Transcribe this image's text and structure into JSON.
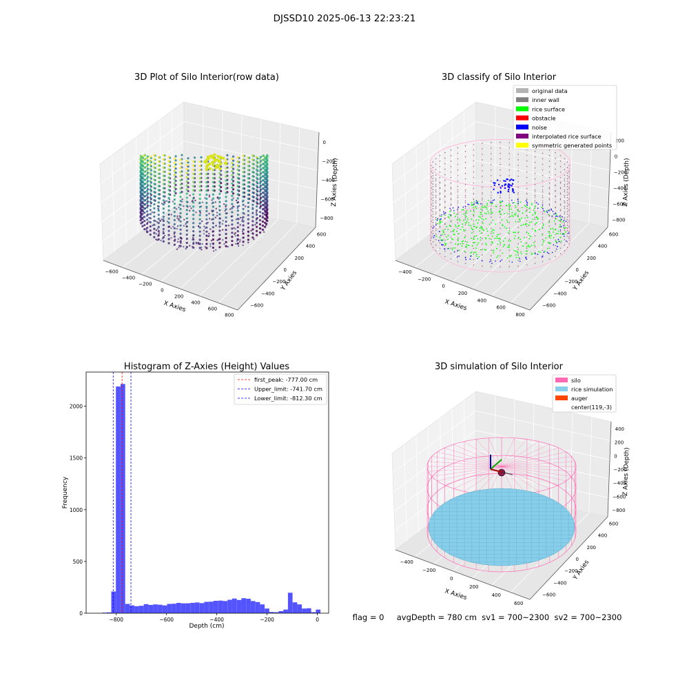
{
  "figure": {
    "suptitle": "DJSSD10 2025-06-13 22:23:21",
    "status_text": "flag = 0     avgDepth = 780 cm  sv1 = 700~2300  sv2 = 700~2300"
  },
  "chart_data": [
    {
      "type": "scatter",
      "title": "3D Plot of Silo Interior(row data)",
      "xlabel": "X Axies",
      "ylabel": "Y Axies",
      "zlabel": "Z Axies (Depth)",
      "x_ticks": [
        "−600",
        "−400",
        "−200",
        "0",
        "200",
        "400",
        "600",
        "800"
      ],
      "y_ticks": [
        "−600",
        "−400",
        "−200",
        "0",
        "200",
        "400",
        "600"
      ],
      "z_ticks": [
        "0",
        "−200",
        "−400",
        "−600",
        "−800"
      ],
      "xlim": [
        -600,
        800
      ],
      "ylim": [
        -600,
        600
      ],
      "zlim": [
        -950,
        0
      ],
      "colormap": "viridis"
    },
    {
      "type": "scatter",
      "title": "3D classify of Silo Interior",
      "xlabel": "X Axies",
      "ylabel": "Y Axies",
      "zlabel": "Z Axies (Depth)",
      "x_ticks": [
        "−400",
        "−200",
        "0",
        "200",
        "400",
        "600",
        "800"
      ],
      "y_ticks": [
        "−600",
        "−400",
        "−200",
        "0",
        "200",
        "400",
        "600"
      ],
      "z_ticks": [
        "200",
        "0",
        "−200",
        "−400",
        "−600",
        "−800"
      ],
      "legend_position": "top-right",
      "legend": [
        {
          "label": "original data",
          "color": "#b3b3b3"
        },
        {
          "label": "inner wall",
          "color": "#808080"
        },
        {
          "label": "rice surface",
          "color": "#00ff00"
        },
        {
          "label": "obstacle",
          "color": "#ff0000"
        },
        {
          "label": "noise",
          "color": "#0000ff"
        },
        {
          "label": "interpolated rice surface",
          "color": "#800080"
        },
        {
          "label": "symmetric generated points",
          "color": "#ffff00"
        }
      ]
    },
    {
      "type": "bar",
      "title": "Histogram of Z-Axies (Height) Values",
      "xlabel": "Depth (cm)",
      "ylabel": "Frequency",
      "xlim": [
        -920,
        45
      ],
      "ylim": [
        0,
        2330
      ],
      "x_ticks": [
        -800,
        -600,
        -400,
        -200,
        0
      ],
      "y_ticks": [
        0,
        500,
        1000,
        1500,
        2000
      ],
      "bar_color": "#4b4bff",
      "bin_width": 18.5,
      "bins": [
        {
          "x": -857,
          "v": 5
        },
        {
          "x": -838.5,
          "v": 8
        },
        {
          "x": -820,
          "v": 210
        },
        {
          "x": -801.5,
          "v": 2190
        },
        {
          "x": -783,
          "v": 2215
        },
        {
          "x": -764.5,
          "v": 90
        },
        {
          "x": -746,
          "v": 75
        },
        {
          "x": -727.5,
          "v": 68
        },
        {
          "x": -709,
          "v": 72
        },
        {
          "x": -690.5,
          "v": 88
        },
        {
          "x": -672,
          "v": 80
        },
        {
          "x": -653.5,
          "v": 85
        },
        {
          "x": -635,
          "v": 82
        },
        {
          "x": -616.5,
          "v": 75
        },
        {
          "x": -598,
          "v": 90
        },
        {
          "x": -579.5,
          "v": 92
        },
        {
          "x": -561,
          "v": 100
        },
        {
          "x": -542.5,
          "v": 95
        },
        {
          "x": -524,
          "v": 96
        },
        {
          "x": -505.5,
          "v": 100
        },
        {
          "x": -487,
          "v": 104
        },
        {
          "x": -468.5,
          "v": 98
        },
        {
          "x": -450,
          "v": 110
        },
        {
          "x": -431.5,
          "v": 112
        },
        {
          "x": -413,
          "v": 120
        },
        {
          "x": -394.5,
          "v": 122
        },
        {
          "x": -376,
          "v": 118
        },
        {
          "x": -357.5,
          "v": 130
        },
        {
          "x": -339,
          "v": 142
        },
        {
          "x": -320.5,
          "v": 128
        },
        {
          "x": -302,
          "v": 145
        },
        {
          "x": -283.5,
          "v": 140
        },
        {
          "x": -265,
          "v": 118
        },
        {
          "x": -246.5,
          "v": 108
        },
        {
          "x": -228,
          "v": 85
        },
        {
          "x": -209.5,
          "v": 45
        },
        {
          "x": -191,
          "v": 12
        },
        {
          "x": -172.5,
          "v": 10
        },
        {
          "x": -154,
          "v": 20
        },
        {
          "x": -135.5,
          "v": 35
        },
        {
          "x": -117,
          "v": 198
        },
        {
          "x": -98.5,
          "v": 105
        },
        {
          "x": -80,
          "v": 85
        },
        {
          "x": -61.5,
          "v": 45
        },
        {
          "x": -43,
          "v": 48
        },
        {
          "x": -24.5,
          "v": 10
        },
        {
          "x": -6,
          "v": 35
        }
      ],
      "vlines": [
        {
          "x": -777.0,
          "color": "#ff0000",
          "label": "first_peak: -777.00 cm"
        },
        {
          "x": -741.7,
          "color": "#0000ff",
          "label": "Upper_limit: -741.70 cm"
        },
        {
          "x": -812.3,
          "color": "#0000ff",
          "label": "Lower_limit: -812.30 cm"
        }
      ],
      "legend_position": "top-right"
    },
    {
      "type": "scatter",
      "title": "3D simulation of Silo Interior",
      "xlabel": "X Axies",
      "ylabel": "Y Axies",
      "zlabel": "Z Axies (Depth)",
      "x_ticks": [
        "−400",
        "−200",
        "0",
        "200",
        "400",
        "600"
      ],
      "y_ticks": [
        "−600",
        "−400",
        "−200",
        "0",
        "200",
        "400",
        "600"
      ],
      "z_ticks": [
        "400",
        "200",
        "0",
        "−200",
        "−400",
        "−600",
        "−800"
      ],
      "legend_position": "top-right",
      "legend": [
        {
          "label": "silo",
          "color": "#ff69b4"
        },
        {
          "label": "rice simulation",
          "color": "#87ceeb"
        },
        {
          "label": "auger",
          "color": "#ff4500"
        },
        {
          "label": "center(119,-3)",
          "color": ""
        }
      ]
    }
  ]
}
